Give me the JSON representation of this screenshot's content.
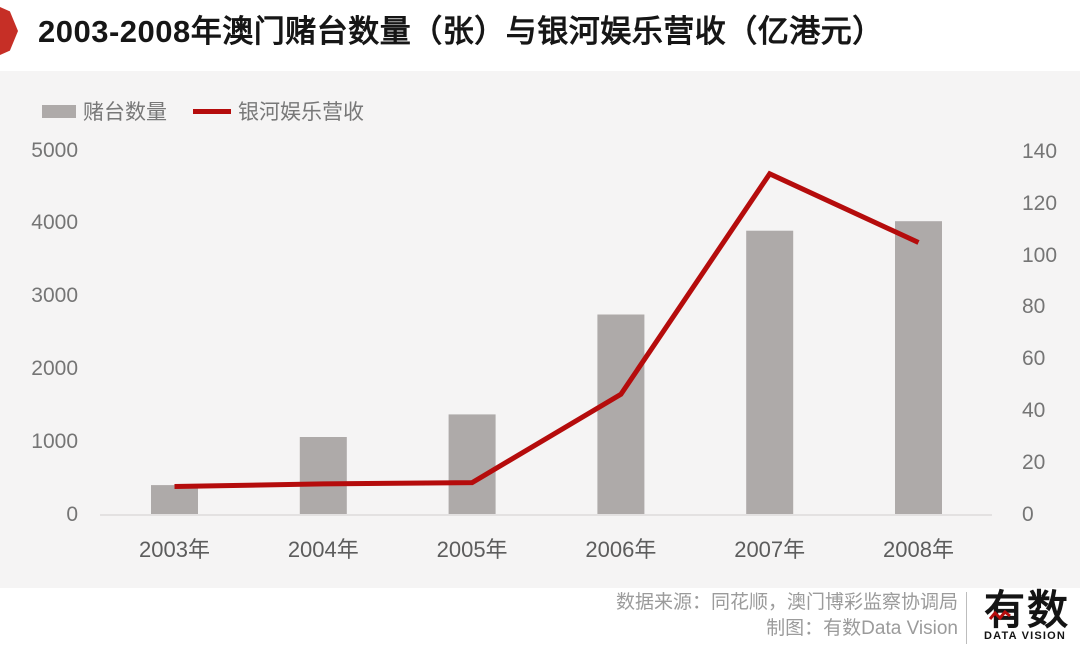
{
  "header": {
    "title": "2003-2008年澳门赌台数量（张）与银河娱乐营收（亿港元）"
  },
  "legend": {
    "items": [
      {
        "label": "赌台数量",
        "swatch": "bar-swatch",
        "color": "#aeaaa9"
      },
      {
        "label": "银河娱乐营收",
        "swatch": "line-swatch",
        "color": "#b50c0c"
      }
    ]
  },
  "chart_data": {
    "type": "combo",
    "title": "2003-2008年澳门赌台数量（张）与银河娱乐营收（亿港元）",
    "categories": [
      "2003年",
      "2004年",
      "2005年",
      "2006年",
      "2007年",
      "2008年"
    ],
    "series": [
      {
        "name": "赌台数量",
        "type": "bar",
        "axis": "left",
        "unit": "张",
        "color": "#aeaaa9",
        "values": [
          410,
          1070,
          1380,
          2750,
          3900,
          4030
        ]
      },
      {
        "name": "银河娱乐营收",
        "type": "line",
        "axis": "right",
        "unit": "亿港元",
        "color": "#b50c0c",
        "values": [
          11,
          12,
          12.5,
          46.5,
          131.5,
          105
        ]
      }
    ],
    "left_axis": {
      "min": 0,
      "max": 5000,
      "step": 1000,
      "ticks": [
        "5000",
        "4000",
        "3000",
        "2000",
        "1000",
        "0"
      ]
    },
    "right_axis": {
      "min": 0,
      "max": 140,
      "step": 20,
      "ticks": [
        "140",
        "120",
        "100",
        "80",
        "60",
        "40",
        "20",
        "0"
      ]
    },
    "grid": false,
    "legend_position": "top-left"
  },
  "footer": {
    "source_line": "数据来源：同花顺，澳门博彩监察协调局",
    "credit_line": "制图：有数Data Vision",
    "logo_text": "有数",
    "logo_subtext": "DATA VISION"
  },
  "colors": {
    "brand_red": "#c62f26",
    "line_red": "#b50c0c",
    "bar_gray": "#aeaaa9",
    "chart_bg": "#f5f4f4",
    "axis_line": "#e3e1e1"
  }
}
